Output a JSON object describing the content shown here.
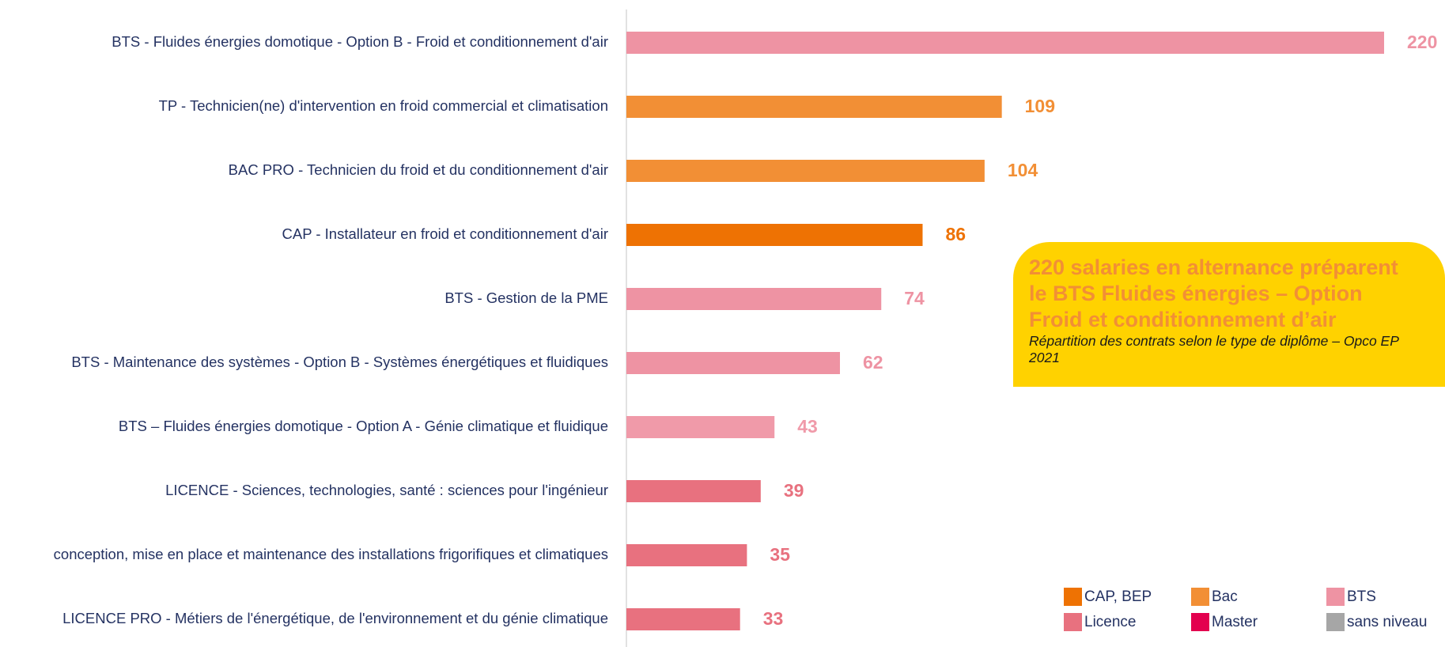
{
  "chart_data": {
    "type": "bar",
    "orientation": "horizontal",
    "categories": [
      "BTS - Fluides énergies domotique - Option B - Froid et conditionnement d'air",
      "TP - Technicien(ne) d'intervention en froid commercial et climatisation",
      "BAC PRO - Technicien du froid et du conditionnement d'air",
      "CAP - Installateur en froid et conditionnement d'air",
      "BTS - Gestion de la PME",
      "BTS - Maintenance des systèmes - Option B - Systèmes énergétiques et fluidiques",
      "BTS – Fluides énergies domotique - Option A - Génie climatique et fluidique",
      "LICENCE - Sciences, technologies, santé : sciences pour l'ingénieur",
      "conception, mise en place et maintenance des installations frigorifiques et climatiques",
      "LICENCE PRO - Métiers de l'énergétique, de l'environnement et du génie climatique"
    ],
    "values": [
      220,
      109,
      104,
      86,
      74,
      62,
      43,
      39,
      35,
      33
    ],
    "colors": [
      "#ee93a3",
      "#f28f35",
      "#f28f35",
      "#ee7203",
      "#ee93a3",
      "#ee93a3",
      "#f09aa9",
      "#e8717f",
      "#e8717f",
      "#e8717f"
    ],
    "xlim": [
      0,
      220
    ],
    "annotation": {
      "title": [
        "220 salaries en alternance préparent",
        "le BTS Fluides énergies – Option",
        "Froid et conditionnement d’air"
      ],
      "subtitle": "Répartition des contrats selon le type de diplôme – Opco EP 2021"
    },
    "legend": [
      {
        "name": "CAP, BEP",
        "color": "#ee7203"
      },
      {
        "name": "Bac",
        "color": "#f28f35"
      },
      {
        "name": "BTS",
        "color": "#ee93a3"
      },
      {
        "name": "Licence",
        "color": "#e8717f"
      },
      {
        "name": "Master",
        "color": "#e3004f"
      },
      {
        "name": "sans niveau",
        "color": "#a6a6a6"
      }
    ]
  }
}
